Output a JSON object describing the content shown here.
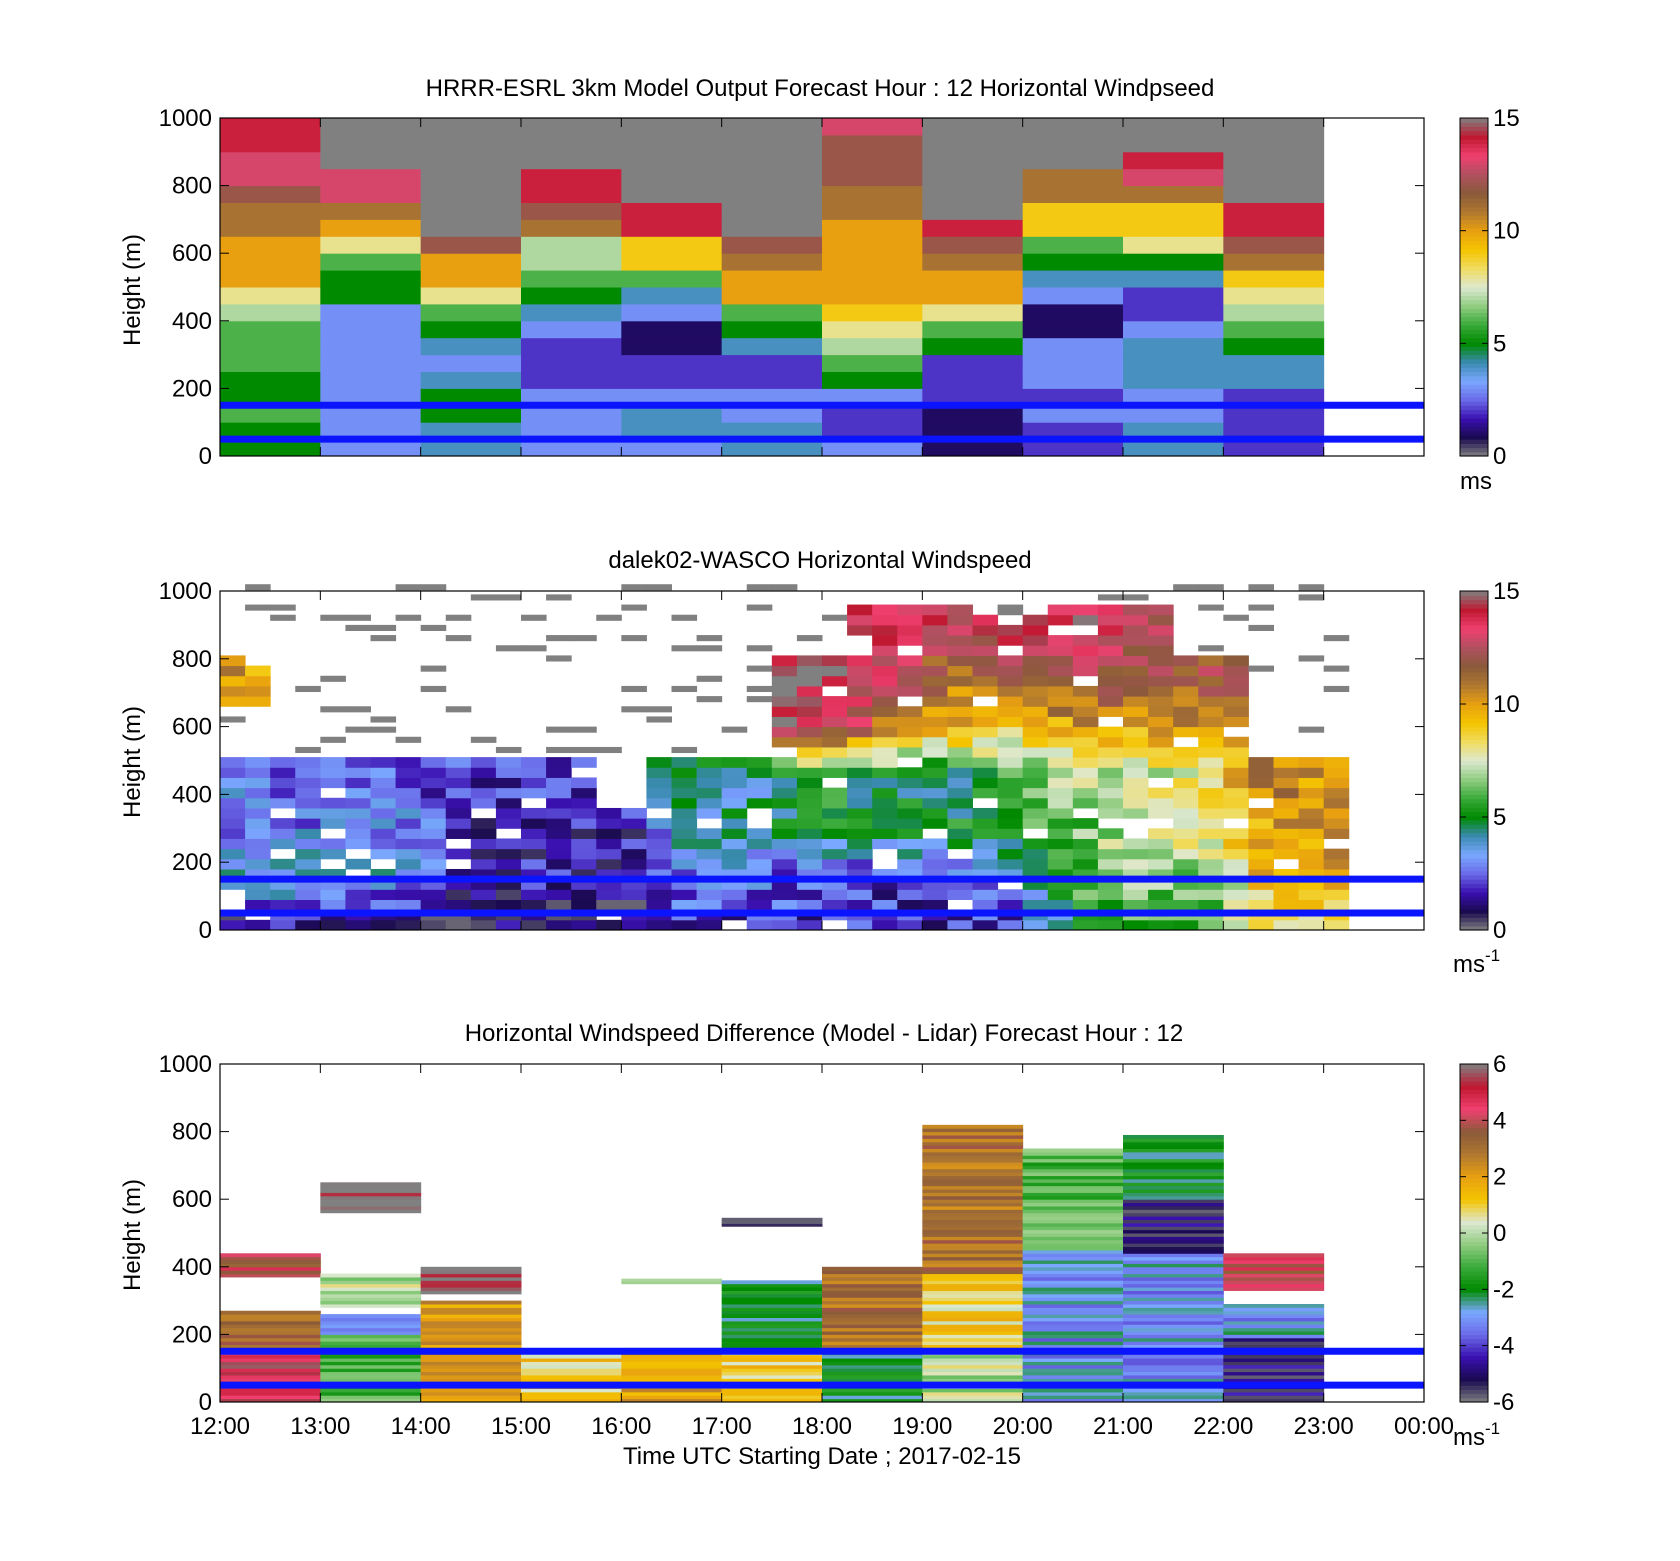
{
  "palette": {
    "speed_stops": [
      "#808080",
      "#1a0a50",
      "#3a10b0",
      "#6a6ae8",
      "#7aa8ff",
      "#3a8ab0",
      "#008a00",
      "#3aaa3a",
      "#90cc80",
      "#dde8d0",
      "#f0dc60",
      "#f4c400",
      "#e8a010",
      "#b07830",
      "#8a5a3a",
      "#b05060",
      "#f04070",
      "#c01830",
      "#808080"
    ],
    "diff_stops": [
      "#808080",
      "#1a0a50",
      "#3a10b0",
      "#6a6ae8",
      "#7aa8ff",
      "#008a00",
      "#3aaa3a",
      "#90cc80",
      "#dde8d0",
      "#f4c400",
      "#e8a010",
      "#b07830",
      "#8a5a3a",
      "#f04070",
      "#c01830",
      "#808080"
    ],
    "reference_line_color": "#0a14ff"
  },
  "chart_data": [
    {
      "type": "heatmap",
      "title": "HRRR-ESRL 3km Model Output   Forecast Hour : 12 Horizontal Windpseed",
      "ylabel": "Height (m)",
      "ylim": [
        0,
        1000
      ],
      "yticks": [
        "0",
        "200",
        "400",
        "600",
        "800",
        "1000"
      ],
      "x": [
        "12:00",
        "13:00",
        "14:00",
        "15:00",
        "16:00",
        "17:00",
        "18:00",
        "19:00",
        "20:00",
        "21:00",
        "22:00",
        "23:00"
      ],
      "heights_m": [
        25,
        75,
        125,
        175,
        225,
        275,
        325,
        375,
        425,
        475,
        525,
        575,
        625,
        675,
        725,
        775,
        825,
        875,
        925,
        975
      ],
      "values": [
        [
          5,
          5,
          6,
          5,
          5,
          6,
          6,
          6,
          7,
          8,
          10,
          10,
          10,
          11,
          11,
          12,
          13,
          13,
          14,
          14
        ],
        [
          3,
          3,
          3,
          3,
          3,
          3,
          3,
          3,
          3,
          5,
          5,
          6,
          8,
          10,
          11,
          13,
          13,
          0,
          0,
          0
        ],
        [
          4,
          4,
          5,
          5,
          4,
          3,
          4,
          5,
          6,
          8,
          10,
          10,
          12,
          15,
          0,
          0,
          0,
          0,
          0,
          0
        ],
        [
          3,
          3,
          3,
          3,
          2,
          2,
          2,
          3,
          4,
          5,
          6,
          7,
          7,
          11,
          12,
          14,
          14,
          0,
          0,
          0
        ],
        [
          3,
          4,
          4,
          3,
          2,
          2,
          1,
          1,
          3,
          4,
          6,
          9,
          9,
          14,
          14,
          0,
          0,
          0,
          0,
          0
        ],
        [
          4,
          4,
          3,
          3,
          2,
          2,
          4,
          5,
          6,
          10,
          10,
          11,
          12,
          15,
          15,
          0,
          0,
          0,
          0,
          0
        ],
        [
          3,
          2,
          2,
          3,
          5,
          6,
          7,
          8,
          9,
          10,
          10,
          10,
          10,
          10,
          11,
          11,
          12,
          12,
          12,
          13
        ],
        [
          1,
          1,
          1,
          2,
          2,
          2,
          5,
          6,
          8,
          10,
          10,
          11,
          12,
          14,
          15,
          16,
          16,
          16,
          0,
          0
        ],
        [
          2,
          2,
          3,
          2,
          3,
          3,
          3,
          1,
          1,
          3,
          4,
          5,
          6,
          9,
          9,
          11,
          11,
          15,
          15,
          0
        ],
        [
          4,
          4,
          3,
          3,
          4,
          4,
          4,
          3,
          2,
          2,
          4,
          5,
          8,
          9,
          9,
          11,
          13,
          14,
          15,
          15
        ],
        [
          2,
          2,
          2,
          2,
          4,
          4,
          5,
          6,
          7,
          8,
          9,
          11,
          12,
          14,
          14,
          0,
          0,
          0,
          0,
          0
        ]
      ],
      "colorbar": {
        "ticks": [
          "0",
          "5",
          "10",
          "15"
        ],
        "min": 0,
        "max": 15,
        "unit": "ms"
      },
      "reference_lines_m": [
        50,
        150
      ]
    },
    {
      "type": "heatmap",
      "title": "dalek02-WASCO  Horizontal Windspeed",
      "ylabel": "Height (m)",
      "ylim": [
        0,
        1000
      ],
      "yticks": [
        "0",
        "200",
        "400",
        "600",
        "800",
        "1000"
      ],
      "x_range_hours": [
        12,
        24
      ],
      "time_step_hours": 0.25,
      "height_step_m": 30,
      "anchor_heights_m": [
        30,
        150,
        300,
        450,
        600,
        750,
        900,
        1000
      ],
      "anchor_profiles": [
        [
          1,
          4,
          3,
          3,
          0,
          10,
          0,
          0
        ],
        [
          2,
          4,
          3,
          2,
          0,
          0,
          0,
          0
        ],
        [
          1,
          4,
          3,
          3,
          0,
          0,
          0,
          0
        ],
        [
          1,
          3,
          3,
          2,
          0,
          0,
          0,
          0
        ],
        [
          1,
          1,
          1,
          2,
          0,
          0,
          0,
          0
        ],
        [
          1,
          2,
          2,
          2,
          0,
          0,
          0,
          0
        ],
        [
          1,
          1,
          1,
          0,
          0,
          0,
          0,
          0
        ],
        [
          2,
          3,
          4,
          5,
          0,
          0,
          0,
          0
        ],
        [
          2,
          3,
          4,
          4,
          0,
          0,
          0,
          0
        ],
        [
          2,
          2,
          5,
          5,
          14,
          15,
          0,
          0
        ],
        [
          2,
          2,
          5,
          5,
          11,
          13,
          14,
          0
        ],
        [
          2,
          2,
          5,
          4,
          10,
          11,
          13,
          0
        ],
        [
          2,
          3,
          5,
          6,
          9,
          12,
          14,
          0
        ],
        [
          5,
          6,
          6,
          7,
          10,
          12,
          14,
          0
        ],
        [
          6,
          7,
          8,
          7,
          10,
          12,
          13,
          0
        ],
        [
          6,
          6,
          8,
          8,
          10,
          12,
          0,
          0
        ],
        [
          8,
          10,
          10,
          11,
          0,
          0,
          0,
          0
        ],
        [
          8,
          10,
          10,
          10,
          0,
          0,
          0,
          0
        ]
      ],
      "colorbar": {
        "ticks": [
          "0",
          "5",
          "10",
          "15"
        ],
        "min": 0,
        "max": 15,
        "unit": "ms",
        "unit_sup": "-1"
      },
      "reference_lines_m": [
        50,
        150
      ]
    },
    {
      "type": "heatmap",
      "title": "Horizontal Windspeed Difference (Model - Lidar) Forecast Hour : 12",
      "ylabel": "Height (m)",
      "xlabel": "Time UTC  Starting Date ; 2017-02-15",
      "ylim": [
        0,
        1000
      ],
      "yticks": [
        "0",
        "200",
        "400",
        "600",
        "800",
        "1000"
      ],
      "x": [
        "12:00",
        "13:00",
        "14:00",
        "15:00",
        "16:00",
        "17:00",
        "18:00",
        "19:00",
        "20:00",
        "21:00",
        "22:00",
        "23:00",
        "00:00"
      ],
      "segments": [
        {
          "hour": 12,
          "from_m": 0,
          "to_m": 150,
          "value": 5
        },
        {
          "hour": 12,
          "from_m": 150,
          "to_m": 270,
          "value": 3
        },
        {
          "hour": 12,
          "from_m": 370,
          "to_m": 440,
          "value": 4
        },
        {
          "hour": 13,
          "from_m": 0,
          "to_m": 200,
          "value": -1
        },
        {
          "hour": 13,
          "from_m": 200,
          "to_m": 260,
          "value": -3
        },
        {
          "hour": 13,
          "from_m": 280,
          "to_m": 380,
          "value": 0
        },
        {
          "hour": 13,
          "from_m": 560,
          "to_m": 650,
          "value": 6
        },
        {
          "hour": 14,
          "from_m": 0,
          "to_m": 300,
          "value": 2
        },
        {
          "hour": 14,
          "from_m": 320,
          "to_m": 400,
          "value": 6
        },
        {
          "hour": 15,
          "from_m": 0,
          "to_m": 140,
          "value": 1
        },
        {
          "hour": 16,
          "from_m": 0,
          "to_m": 160,
          "value": 2
        },
        {
          "hour": 16,
          "from_m": 350,
          "to_m": 365,
          "value": 0
        },
        {
          "hour": 17,
          "from_m": 0,
          "to_m": 160,
          "value": 1
        },
        {
          "hour": 17,
          "from_m": 160,
          "to_m": 360,
          "value": -2
        },
        {
          "hour": 17,
          "from_m": 520,
          "to_m": 545,
          "value": -5
        },
        {
          "hour": 18,
          "from_m": 0,
          "to_m": 160,
          "value": -2
        },
        {
          "hour": 18,
          "from_m": 160,
          "to_m": 400,
          "value": 3
        },
        {
          "hour": 19,
          "from_m": 0,
          "to_m": 160,
          "value": 0
        },
        {
          "hour": 19,
          "from_m": 160,
          "to_m": 380,
          "value": 1
        },
        {
          "hour": 19,
          "from_m": 380,
          "to_m": 820,
          "value": 3
        },
        {
          "hour": 20,
          "from_m": 0,
          "to_m": 450,
          "value": -3
        },
        {
          "hour": 20,
          "from_m": 450,
          "to_m": 750,
          "value": -1
        },
        {
          "hour": 21,
          "from_m": 0,
          "to_m": 440,
          "value": -3
        },
        {
          "hour": 21,
          "from_m": 440,
          "to_m": 600,
          "value": -5
        },
        {
          "hour": 21,
          "from_m": 600,
          "to_m": 790,
          "value": -2
        },
        {
          "hour": 22,
          "from_m": 0,
          "to_m": 190,
          "value": -5
        },
        {
          "hour": 22,
          "from_m": 190,
          "to_m": 290,
          "value": -3
        },
        {
          "hour": 22,
          "from_m": 330,
          "to_m": 440,
          "value": 4
        }
      ],
      "colorbar": {
        "ticks": [
          "-6",
          "-4",
          "-2",
          "0",
          "2",
          "4",
          "6"
        ],
        "min": -6,
        "max": 6,
        "unit": "ms",
        "unit_sup": "-1"
      },
      "reference_lines_m": [
        50,
        150
      ]
    }
  ]
}
